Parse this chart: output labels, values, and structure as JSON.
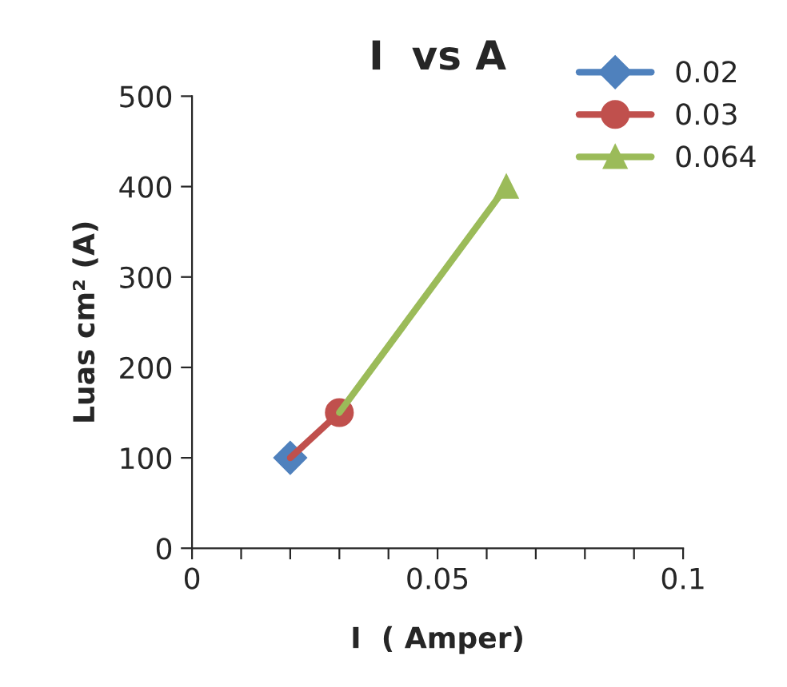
{
  "chart_data": {
    "type": "line",
    "title": "I  vs A",
    "xlabel": "I  ( Amper)",
    "ylabel": "Luas cm² (A)",
    "series": [
      {
        "name": "0.02",
        "color": "#4f81bd",
        "x": [
          0.02
        ],
        "values": [
          100
        ],
        "marker": "diamond"
      },
      {
        "name": "0.03",
        "color": "#c0504d",
        "x": [
          0.02,
          0.03
        ],
        "values": [
          100,
          150
        ],
        "marker": "circle"
      },
      {
        "name": "0.064",
        "color": "#9bbb59",
        "x": [
          0.03,
          0.064
        ],
        "values": [
          150,
          400
        ],
        "marker": "triangle"
      }
    ],
    "xlim": [
      0,
      0.1
    ],
    "xticks": [
      0,
      {
        "value": 0.01,
        "label": null
      },
      {
        "value": 0.02,
        "label": null
      },
      {
        "value": 0.03,
        "label": null
      },
      {
        "value": 0.04,
        "label": null
      },
      {
        "value": 0.05,
        "label": "0.05"
      },
      {
        "value": 0.06,
        "label": null
      },
      {
        "value": 0.07,
        "label": null
      },
      {
        "value": 0.08,
        "label": null
      },
      {
        "value": 0.09,
        "label": null
      },
      0.1
    ],
    "ylim": [
      0,
      500
    ],
    "yticks": [
      0,
      100,
      200,
      300,
      400,
      500
    ],
    "grid": false,
    "legend": "top right"
  }
}
